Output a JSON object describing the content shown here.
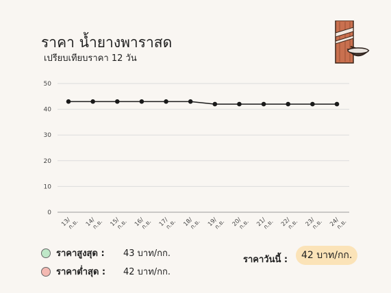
{
  "header": {
    "title": "ราคา น้ำยางพาราสด",
    "subtitle": "เปรียบเทียบราคา 12 วัน"
  },
  "chart_data": {
    "type": "line",
    "categories": [
      "13/ ก.ย.",
      "14/ ก.ย.",
      "15/ ก.ย.",
      "16/ ก.ย.",
      "17/ ก.ย.",
      "18/ ก.ย.",
      "19/ ก.ย.",
      "20/ ก.ย.",
      "21/ ก.ย.",
      "22/ ก.ย.",
      "23/ ก.ย.",
      "24/ ก.ย."
    ],
    "tick_day": [
      "13/",
      "14/",
      "15/",
      "16/",
      "17/",
      "18/",
      "19/",
      "20/",
      "21/",
      "22/",
      "23/",
      "24/"
    ],
    "tick_month": "ก.ย.",
    "values": [
      43,
      43,
      43,
      43,
      43,
      43,
      42,
      42,
      42,
      42,
      42,
      42
    ],
    "ylim": [
      0,
      50
    ],
    "yticks": [
      0,
      10,
      20,
      30,
      40,
      50
    ],
    "grid": true,
    "title": "ราคา น้ำยางพาราสด",
    "xlabel": "",
    "ylabel": "",
    "line_color": "#1a1a1a"
  },
  "stats": {
    "max_label": "ราคาสูงสุด :",
    "max_value": "43 บาท/กก.",
    "max_color": "#bfe8c8",
    "min_label": "ราคาต่ำสุด :",
    "min_value": "42 บาท/กก.",
    "min_color": "#f4b9b2"
  },
  "today": {
    "label": "ราคาวันนี้ :",
    "value": "42 บาท/กก.",
    "highlight_color": "#fbe3b8"
  },
  "logo": {
    "icon": "rubber-tapping-icon"
  }
}
